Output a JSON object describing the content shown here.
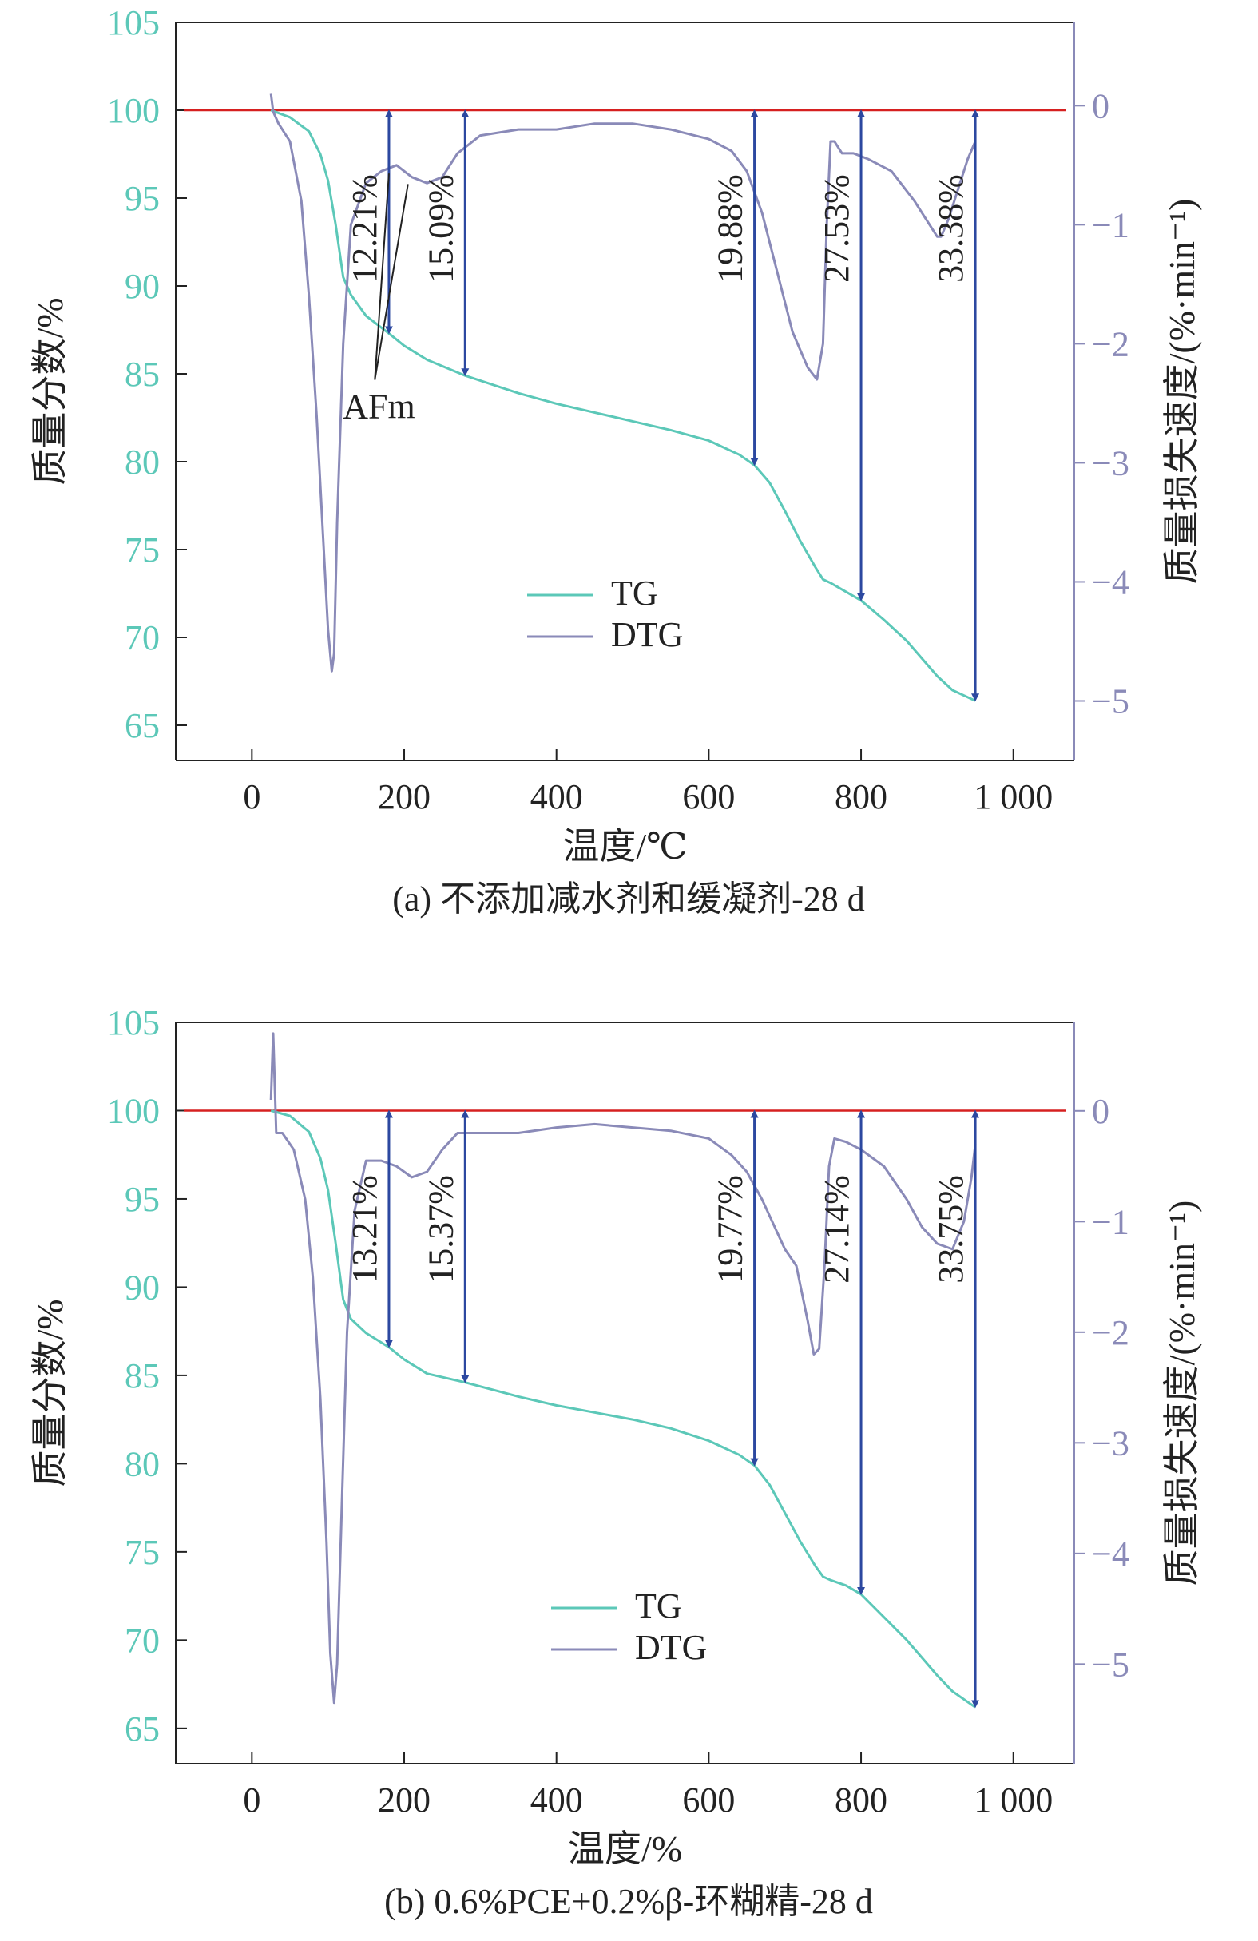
{
  "colors": {
    "tg": "#5cc8b8",
    "dtg": "#8a8ab8",
    "baseline": "#d62020",
    "arrow": "#2c48a0",
    "frame": "#222222",
    "right_axis": "#8a8ab8"
  },
  "chart_data": [
    {
      "type": "line",
      "caption": "(a) 不添加减水剂和缓凝剂-28 d",
      "xlabel": "温度/℃",
      "ylabel_left": "质量分数/%",
      "ylabel_right": "质量损失速度/(%·min⁻¹)",
      "xlim": [
        -100,
        1080
      ],
      "ylim_left": [
        63,
        105
      ],
      "ylim_right": [
        -5.5,
        0.7
      ],
      "x_ticks": [
        0,
        200,
        400,
        600,
        800,
        1000
      ],
      "x_tick_labels": [
        "0",
        "200",
        "400",
        "600",
        "800",
        "1 000"
      ],
      "y_left_ticks": [
        65,
        70,
        75,
        80,
        85,
        90,
        95,
        100,
        105
      ],
      "y_right_ticks": [
        -5,
        -4,
        -3,
        -2,
        -1,
        0
      ],
      "y_right_tick_labels": [
        "−5",
        "−4",
        "−3",
        "−2",
        "−1",
        "0"
      ],
      "legend": [
        "TG",
        "DTG"
      ],
      "series": [
        {
          "name": "TG",
          "x": [
            25,
            50,
            75,
            90,
            100,
            110,
            120,
            130,
            150,
            180,
            200,
            230,
            280,
            350,
            400,
            450,
            500,
            550,
            600,
            640,
            660,
            680,
            700,
            720,
            740,
            750,
            760,
            780,
            800,
            830,
            860,
            900,
            920,
            940,
            950
          ],
          "y": [
            100,
            99.6,
            98.8,
            97.5,
            96.0,
            93.5,
            90.5,
            89.5,
            88.3,
            87.3,
            86.6,
            85.8,
            84.9,
            83.9,
            83.3,
            82.8,
            82.3,
            81.8,
            81.2,
            80.4,
            79.8,
            78.8,
            77.2,
            75.5,
            74.0,
            73.3,
            73.1,
            72.6,
            72.1,
            71.0,
            69.8,
            67.8,
            67.0,
            66.6,
            66.4
          ]
        },
        {
          "name": "DTG",
          "x": [
            25,
            28,
            35,
            50,
            65,
            75,
            85,
            95,
            100,
            105,
            108,
            112,
            120,
            130,
            150,
            170,
            190,
            210,
            230,
            250,
            270,
            300,
            350,
            400,
            450,
            500,
            550,
            600,
            630,
            650,
            670,
            690,
            710,
            730,
            742,
            750,
            755,
            760,
            765,
            775,
            790,
            810,
            840,
            870,
            890,
            900,
            905,
            915,
            925,
            940,
            950
          ],
          "y": [
            0.1,
            -0.05,
            -0.15,
            -0.3,
            -0.8,
            -1.6,
            -2.6,
            -3.8,
            -4.4,
            -4.75,
            -4.6,
            -3.5,
            -2.0,
            -1.0,
            -0.65,
            -0.55,
            -0.5,
            -0.6,
            -0.65,
            -0.6,
            -0.4,
            -0.25,
            -0.2,
            -0.2,
            -0.15,
            -0.15,
            -0.2,
            -0.28,
            -0.38,
            -0.55,
            -0.9,
            -1.4,
            -1.9,
            -2.2,
            -2.3,
            -2.0,
            -1.0,
            -0.3,
            -0.3,
            -0.4,
            -0.4,
            -0.45,
            -0.55,
            -0.8,
            -1.0,
            -1.1,
            -1.1,
            -0.95,
            -0.75,
            -0.45,
            -0.3
          ]
        }
      ],
      "annotations": [
        {
          "label": "12.21%",
          "x": 180
        },
        {
          "label": "15.09%",
          "x": 280
        },
        {
          "label": "19.88%",
          "x": 660
        },
        {
          "label": "27.53%",
          "x": 800
        },
        {
          "label": "33.38%",
          "x": 950
        }
      ],
      "afm_label": "AFm"
    },
    {
      "type": "line",
      "caption": "(b) 0.6%PCE+0.2%β-环糊精-28 d",
      "xlabel": "温度/%",
      "ylabel_left": "质量分数/%",
      "ylabel_right": "质量损失速度/(%·min⁻¹)",
      "xlim": [
        -100,
        1080
      ],
      "ylim_left": [
        63,
        105
      ],
      "ylim_right": [
        -5.9,
        0.8
      ],
      "x_ticks": [
        0,
        200,
        400,
        600,
        800,
        1000
      ],
      "x_tick_labels": [
        "0",
        "200",
        "400",
        "600",
        "800",
        "1 000"
      ],
      "y_left_ticks": [
        65,
        70,
        75,
        80,
        85,
        90,
        95,
        100,
        105
      ],
      "y_right_ticks": [
        -5,
        -4,
        -3,
        -2,
        -1,
        0
      ],
      "y_right_tick_labels": [
        "−5",
        "−4",
        "−3",
        "−2",
        "−1",
        "0"
      ],
      "legend": [
        "TG",
        "DTG"
      ],
      "series": [
        {
          "name": "TG",
          "x": [
            25,
            50,
            75,
            90,
            100,
            110,
            120,
            130,
            150,
            180,
            200,
            230,
            280,
            350,
            400,
            450,
            500,
            550,
            600,
            640,
            660,
            680,
            700,
            720,
            740,
            750,
            760,
            780,
            800,
            830,
            860,
            900,
            920,
            940,
            950
          ],
          "y": [
            100,
            99.7,
            98.8,
            97.3,
            95.5,
            92.5,
            89.3,
            88.2,
            87.4,
            86.6,
            85.9,
            85.1,
            84.6,
            83.8,
            83.3,
            82.9,
            82.5,
            82.0,
            81.3,
            80.5,
            79.9,
            78.8,
            77.2,
            75.6,
            74.2,
            73.6,
            73.4,
            73.1,
            72.6,
            71.3,
            70.0,
            68.0,
            67.1,
            66.5,
            66.2
          ]
        },
        {
          "name": "DTG",
          "x": [
            25,
            28,
            32,
            40,
            55,
            70,
            80,
            90,
            98,
            103,
            108,
            112,
            118,
            125,
            135,
            150,
            170,
            190,
            210,
            230,
            250,
            270,
            300,
            350,
            400,
            450,
            500,
            550,
            600,
            630,
            650,
            670,
            690,
            700,
            715,
            730,
            738,
            745,
            752,
            758,
            765,
            780,
            800,
            830,
            860,
            880,
            900,
            920,
            935,
            945,
            950
          ],
          "y": [
            0.1,
            0.7,
            -0.2,
            -0.2,
            -0.35,
            -0.8,
            -1.5,
            -2.6,
            -3.9,
            -4.9,
            -5.35,
            -5.0,
            -3.6,
            -2.0,
            -0.9,
            -0.45,
            -0.45,
            -0.5,
            -0.6,
            -0.55,
            -0.35,
            -0.2,
            -0.2,
            -0.2,
            -0.15,
            -0.12,
            -0.15,
            -0.18,
            -0.25,
            -0.4,
            -0.55,
            -0.8,
            -1.1,
            -1.25,
            -1.4,
            -1.9,
            -2.2,
            -2.15,
            -1.4,
            -0.5,
            -0.25,
            -0.28,
            -0.35,
            -0.5,
            -0.8,
            -1.05,
            -1.2,
            -1.25,
            -1.0,
            -0.6,
            -0.3
          ]
        }
      ],
      "annotations": [
        {
          "label": "13.21%",
          "x": 180
        },
        {
          "label": "15.37%",
          "x": 280
        },
        {
          "label": "19.77%",
          "x": 660
        },
        {
          "label": "27.14%",
          "x": 800
        },
        {
          "label": "33.75%",
          "x": 950
        }
      ]
    }
  ]
}
